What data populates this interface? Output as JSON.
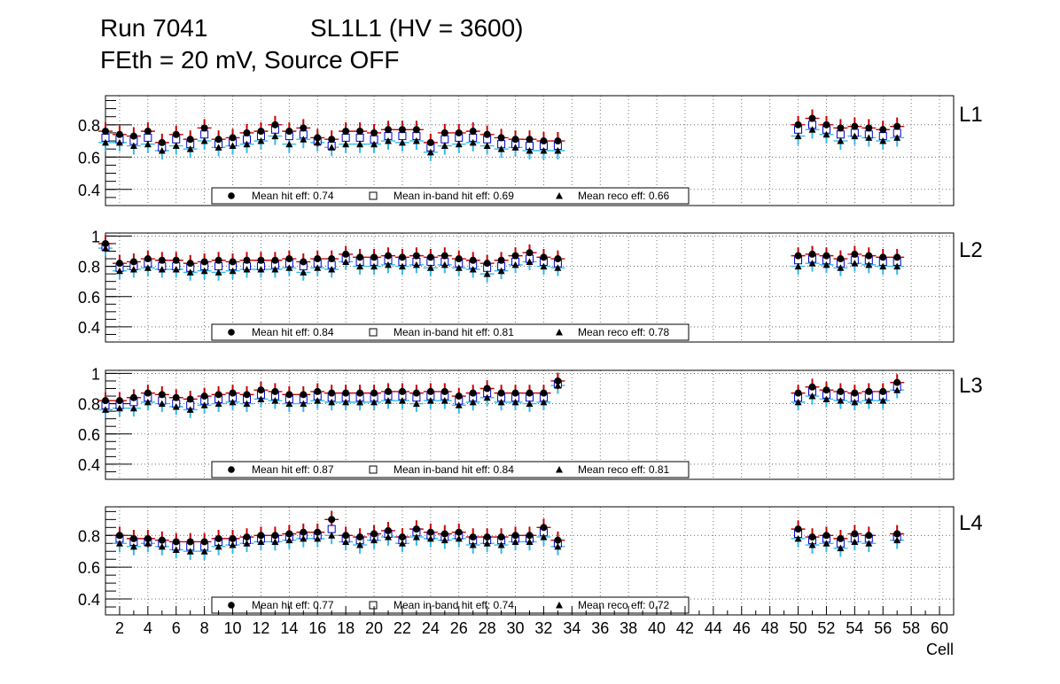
{
  "header": {
    "run": "Run 7041",
    "chamber": "SL1L1 (HV = 3600)",
    "conditions": "FEth = 20 mV, Source OFF"
  },
  "chart_data": {
    "type": "scatter",
    "x_label": "Cell",
    "xlim": [
      1,
      61
    ],
    "x_tick_labels": [
      "2",
      "4",
      "6",
      "8",
      "10",
      "12",
      "14",
      "16",
      "18",
      "20",
      "22",
      "24",
      "26",
      "28",
      "30",
      "32",
      "34",
      "36",
      "38",
      "40",
      "42",
      "44",
      "46",
      "48",
      "50",
      "52",
      "54",
      "56",
      "58",
      "60"
    ],
    "colors": {
      "hit": "#000000",
      "in_band": "#0000cc",
      "reco": "#00aaff",
      "err_hit": "#cc0000",
      "err_reco": "#33bbee",
      "grid": "#555555"
    },
    "panels": [
      {
        "layer": "L1",
        "ylim": [
          0.3,
          0.98
        ],
        "y_tick_labels": [
          "0.4",
          "0.6",
          "0.8"
        ],
        "legend": {
          "hit": "Mean hit  eff: 0.74",
          "in_band": "Mean in-band hit eff: 0.69",
          "reco": "Mean reco eff: 0.66"
        },
        "cells": [
          1,
          2,
          3,
          4,
          5,
          6,
          7,
          8,
          9,
          10,
          11,
          12,
          13,
          14,
          15,
          16,
          17,
          18,
          19,
          20,
          21,
          22,
          23,
          24,
          25,
          26,
          27,
          28,
          29,
          30,
          31,
          32,
          33,
          50,
          51,
          52,
          53,
          54,
          55,
          56,
          57
        ],
        "hit": [
          0.76,
          0.74,
          0.73,
          0.76,
          0.69,
          0.74,
          0.71,
          0.78,
          0.71,
          0.72,
          0.75,
          0.76,
          0.8,
          0.76,
          0.78,
          0.72,
          0.71,
          0.76,
          0.76,
          0.75,
          0.77,
          0.77,
          0.77,
          0.69,
          0.75,
          0.75,
          0.76,
          0.74,
          0.72,
          0.71,
          0.71,
          0.7,
          0.7,
          0.8,
          0.84,
          0.8,
          0.78,
          0.79,
          0.78,
          0.77,
          0.79
        ],
        "in_band": [
          0.72,
          0.71,
          0.7,
          0.72,
          0.66,
          0.71,
          0.68,
          0.74,
          0.68,
          0.69,
          0.71,
          0.73,
          0.77,
          0.73,
          0.74,
          0.7,
          0.67,
          0.72,
          0.72,
          0.71,
          0.73,
          0.73,
          0.73,
          0.66,
          0.71,
          0.72,
          0.72,
          0.71,
          0.68,
          0.68,
          0.67,
          0.67,
          0.67,
          0.77,
          0.8,
          0.77,
          0.74,
          0.75,
          0.74,
          0.73,
          0.75
        ],
        "reco": [
          0.69,
          0.69,
          0.67,
          0.68,
          0.64,
          0.67,
          0.65,
          0.7,
          0.66,
          0.67,
          0.68,
          0.7,
          0.73,
          0.68,
          0.71,
          0.69,
          0.66,
          0.68,
          0.68,
          0.68,
          0.7,
          0.69,
          0.7,
          0.63,
          0.67,
          0.68,
          0.69,
          0.67,
          0.65,
          0.66,
          0.64,
          0.64,
          0.64,
          0.73,
          0.77,
          0.74,
          0.7,
          0.73,
          0.72,
          0.7,
          0.72
        ]
      },
      {
        "layer": "L2",
        "ylim": [
          0.3,
          1.02
        ],
        "y_tick_labels": [
          "0.4",
          "0.6",
          "0.8",
          "1"
        ],
        "legend": {
          "hit": "Mean hit  eff: 0.84",
          "in_band": "Mean in-band hit eff: 0.81",
          "reco": "Mean reco eff: 0.78"
        },
        "cells": [
          1,
          2,
          3,
          4,
          5,
          6,
          7,
          8,
          9,
          10,
          11,
          12,
          13,
          14,
          15,
          16,
          17,
          18,
          19,
          20,
          21,
          22,
          23,
          24,
          25,
          26,
          27,
          28,
          29,
          30,
          31,
          32,
          33,
          50,
          51,
          52,
          53,
          54,
          55,
          56,
          57
        ],
        "hit": [
          0.95,
          0.82,
          0.83,
          0.85,
          0.84,
          0.84,
          0.82,
          0.83,
          0.84,
          0.83,
          0.84,
          0.84,
          0.84,
          0.85,
          0.83,
          0.85,
          0.85,
          0.88,
          0.86,
          0.86,
          0.87,
          0.86,
          0.87,
          0.86,
          0.87,
          0.85,
          0.84,
          0.82,
          0.84,
          0.87,
          0.89,
          0.86,
          0.85,
          0.87,
          0.88,
          0.87,
          0.85,
          0.88,
          0.87,
          0.86,
          0.86
        ],
        "in_band": [
          0.93,
          0.79,
          0.8,
          0.82,
          0.8,
          0.8,
          0.79,
          0.8,
          0.8,
          0.8,
          0.8,
          0.8,
          0.81,
          0.82,
          0.8,
          0.82,
          0.81,
          0.85,
          0.83,
          0.83,
          0.84,
          0.83,
          0.83,
          0.83,
          0.83,
          0.82,
          0.81,
          0.79,
          0.8,
          0.83,
          0.85,
          0.83,
          0.82,
          0.84,
          0.85,
          0.84,
          0.82,
          0.84,
          0.84,
          0.83,
          0.83
        ],
        "reco": [
          0.92,
          0.77,
          0.78,
          0.79,
          0.78,
          0.78,
          0.76,
          0.77,
          0.76,
          0.77,
          0.78,
          0.78,
          0.78,
          0.79,
          0.76,
          0.79,
          0.78,
          0.83,
          0.8,
          0.8,
          0.81,
          0.8,
          0.81,
          0.79,
          0.81,
          0.79,
          0.78,
          0.75,
          0.77,
          0.81,
          0.83,
          0.8,
          0.79,
          0.8,
          0.82,
          0.81,
          0.79,
          0.82,
          0.81,
          0.8,
          0.8
        ]
      },
      {
        "layer": "L3",
        "ylim": [
          0.3,
          1.02
        ],
        "y_tick_labels": [
          "0.4",
          "0.6",
          "0.8",
          "1"
        ],
        "legend": {
          "hit": "Mean hit  eff: 0.87",
          "in_band": "Mean in-band hit eff: 0.84",
          "reco": "Mean reco eff: 0.81"
        },
        "cells": [
          1,
          2,
          3,
          4,
          5,
          6,
          7,
          8,
          9,
          10,
          11,
          12,
          13,
          14,
          15,
          16,
          17,
          18,
          19,
          20,
          21,
          22,
          23,
          24,
          25,
          26,
          27,
          28,
          29,
          30,
          31,
          32,
          33,
          50,
          51,
          52,
          53,
          54,
          55,
          56,
          57
        ],
        "hit": [
          0.82,
          0.82,
          0.84,
          0.87,
          0.86,
          0.84,
          0.83,
          0.85,
          0.86,
          0.87,
          0.86,
          0.89,
          0.88,
          0.86,
          0.86,
          0.88,
          0.87,
          0.87,
          0.87,
          0.87,
          0.88,
          0.88,
          0.87,
          0.88,
          0.88,
          0.85,
          0.87,
          0.9,
          0.87,
          0.87,
          0.87,
          0.87,
          0.95,
          0.87,
          0.91,
          0.89,
          0.88,
          0.87,
          0.88,
          0.88,
          0.94
        ],
        "in_band": [
          0.79,
          0.79,
          0.81,
          0.84,
          0.82,
          0.8,
          0.79,
          0.82,
          0.83,
          0.84,
          0.83,
          0.86,
          0.85,
          0.83,
          0.83,
          0.85,
          0.84,
          0.84,
          0.84,
          0.84,
          0.85,
          0.85,
          0.84,
          0.85,
          0.85,
          0.82,
          0.84,
          0.87,
          0.84,
          0.84,
          0.84,
          0.84,
          0.93,
          0.84,
          0.88,
          0.86,
          0.85,
          0.84,
          0.85,
          0.85,
          0.91
        ],
        "reco": [
          0.76,
          0.77,
          0.77,
          0.81,
          0.8,
          0.78,
          0.76,
          0.79,
          0.8,
          0.81,
          0.8,
          0.83,
          0.82,
          0.8,
          0.8,
          0.82,
          0.81,
          0.81,
          0.81,
          0.81,
          0.82,
          0.82,
          0.8,
          0.82,
          0.82,
          0.79,
          0.81,
          0.84,
          0.81,
          0.81,
          0.8,
          0.81,
          0.92,
          0.81,
          0.85,
          0.83,
          0.82,
          0.81,
          0.82,
          0.82,
          0.89
        ]
      },
      {
        "layer": "L4",
        "ylim": [
          0.3,
          0.98
        ],
        "y_tick_labels": [
          "0.4",
          "0.6",
          "0.8"
        ],
        "legend": {
          "hit": "Mean hit  eff: 0.77",
          "in_band": "Mean in-band hit eff: 0.74",
          "reco": "Mean reco eff: 0.72"
        },
        "cells": [
          2,
          3,
          4,
          5,
          6,
          7,
          8,
          9,
          10,
          11,
          12,
          13,
          14,
          15,
          16,
          17,
          18,
          19,
          20,
          21,
          22,
          23,
          24,
          25,
          26,
          27,
          28,
          29,
          30,
          31,
          32,
          33,
          50,
          51,
          52,
          53,
          54,
          55,
          57
        ],
        "hit": [
          0.8,
          0.78,
          0.78,
          0.77,
          0.76,
          0.76,
          0.76,
          0.78,
          0.78,
          0.79,
          0.8,
          0.8,
          0.81,
          0.82,
          0.82,
          0.9,
          0.8,
          0.79,
          0.81,
          0.83,
          0.79,
          0.84,
          0.82,
          0.81,
          0.82,
          0.79,
          0.79,
          0.79,
          0.8,
          0.8,
          0.85,
          0.77,
          0.84,
          0.79,
          0.8,
          0.78,
          0.81,
          0.8,
          0.81
        ],
        "in_band": [
          0.78,
          0.76,
          0.76,
          0.75,
          0.73,
          0.73,
          0.73,
          0.76,
          0.76,
          0.77,
          0.78,
          0.78,
          0.79,
          0.8,
          0.8,
          0.84,
          0.78,
          0.77,
          0.79,
          0.81,
          0.77,
          0.82,
          0.8,
          0.79,
          0.8,
          0.77,
          0.77,
          0.77,
          0.78,
          0.78,
          0.82,
          0.75,
          0.81,
          0.77,
          0.78,
          0.75,
          0.78,
          0.78,
          0.79
        ],
        "reco": [
          0.75,
          0.73,
          0.75,
          0.73,
          0.71,
          0.7,
          0.7,
          0.73,
          0.74,
          0.75,
          0.76,
          0.76,
          0.77,
          0.78,
          0.78,
          0.8,
          0.76,
          0.74,
          0.77,
          0.79,
          0.75,
          0.79,
          0.78,
          0.77,
          0.78,
          0.74,
          0.75,
          0.74,
          0.76,
          0.76,
          0.79,
          0.73,
          0.78,
          0.74,
          0.75,
          0.72,
          0.76,
          0.75,
          0.77
        ]
      }
    ]
  }
}
